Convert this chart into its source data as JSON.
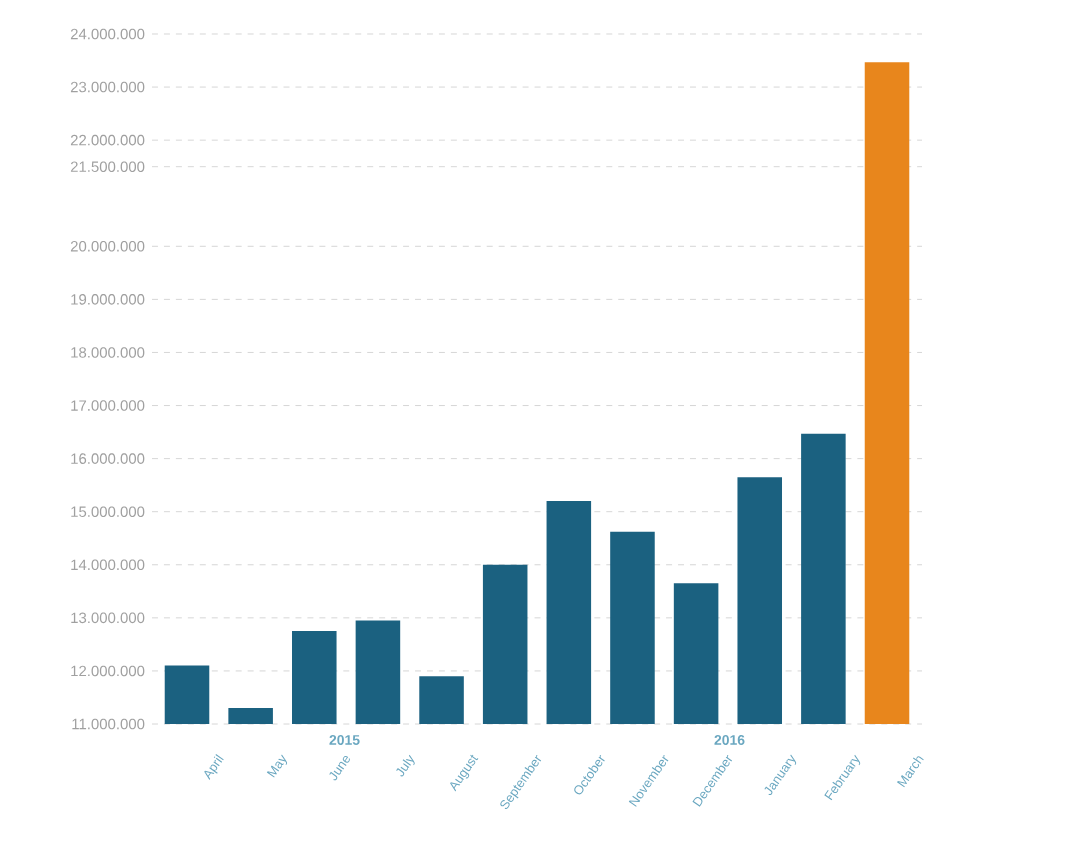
{
  "chart_data": {
    "type": "bar",
    "categories": [
      "April",
      "May",
      "June",
      "July",
      "August",
      "September",
      "October",
      "November",
      "December",
      "January",
      "February",
      "March"
    ],
    "values": [
      12100000,
      11300000,
      12750000,
      12950000,
      11900000,
      14000000,
      15200000,
      14620000,
      13650000,
      15650000,
      16470000,
      23470000
    ],
    "colors": [
      "#1b6180",
      "#1b6180",
      "#1b6180",
      "#1b6180",
      "#1b6180",
      "#1b6180",
      "#1b6180",
      "#1b6180",
      "#1b6180",
      "#1b6180",
      "#1b6180",
      "#e8861c"
    ],
    "ylim": [
      11000000,
      24000000
    ],
    "yticks": [
      {
        "value": 11000000,
        "label": "11.000.000"
      },
      {
        "value": 12000000,
        "label": "12.000.000"
      },
      {
        "value": 13000000,
        "label": "13.000.000"
      },
      {
        "value": 14000000,
        "label": "14.000.000"
      },
      {
        "value": 15000000,
        "label": "15.000.000"
      },
      {
        "value": 16000000,
        "label": "16.000.000"
      },
      {
        "value": 17000000,
        "label": "17.000.000"
      },
      {
        "value": 18000000,
        "label": "18.000.000"
      },
      {
        "value": 19000000,
        "label": "19.000.000"
      },
      {
        "value": 20000000,
        "label": "20.000.000"
      },
      {
        "value": 21500000,
        "label": "21.500.000"
      },
      {
        "value": 22000000,
        "label": "22.000.000"
      },
      {
        "value": 23000000,
        "label": "23.000.000"
      },
      {
        "value": 24000000,
        "label": "24.000.000"
      }
    ],
    "annotations": [
      "2015",
      "2016"
    ],
    "grid": "y"
  }
}
